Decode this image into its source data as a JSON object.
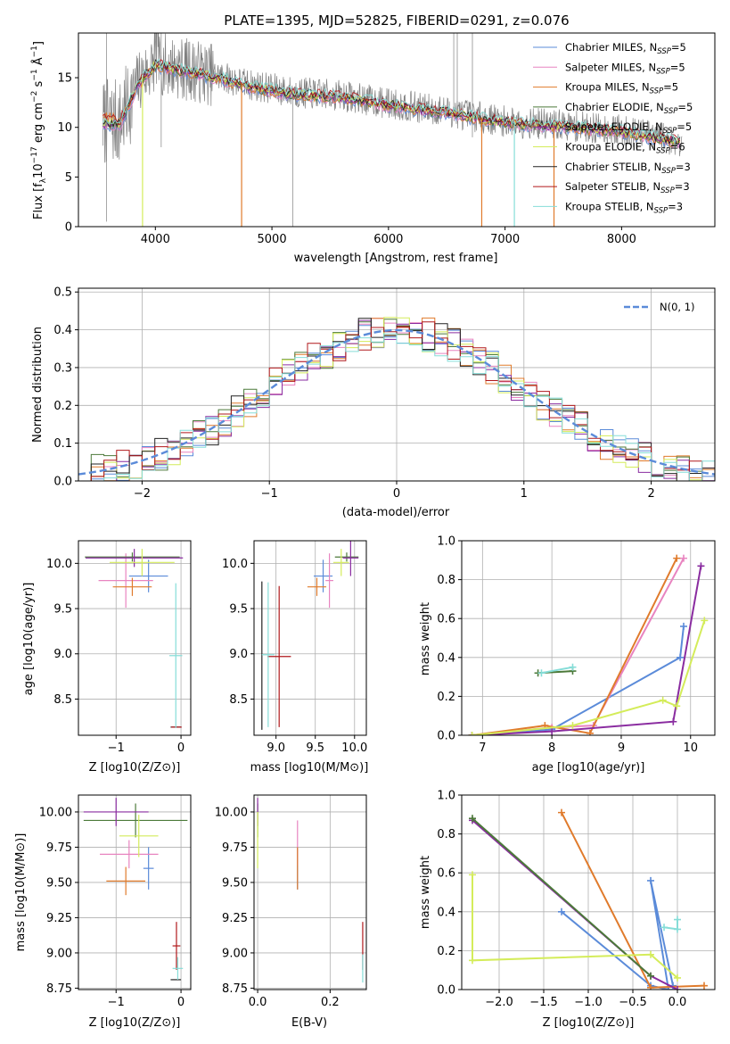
{
  "figure_title": "PLATE=1395, MJD=52825, FIBERID=0291, z=0.076",
  "model_colors": [
    "#5b8bd9",
    "#e884c0",
    "#e07b2c",
    "#4c7a3a",
    "#8a2ca0",
    "#d4ec5a",
    "#222222",
    "#b0181b",
    "#86ddd8"
  ],
  "chart_data": [
    {
      "id": "spectrum",
      "type": "line",
      "title": "PLATE=1395, MJD=52825, FIBERID=0291, z=0.076",
      "xlabel": "wavelength [Angstrom, rest frame]",
      "ylabel": "Flux [f",
      "ylabel_full": "Flux [fλ10^-17 erg cm^-2 s^-1 A^-1]",
      "xlim": [
        3340,
        8800
      ],
      "ylim": [
        0,
        19.5
      ],
      "xticks": [
        "4000",
        "5000",
        "6000",
        "7000",
        "8000"
      ],
      "yticks": [
        "0",
        "5",
        "10",
        "15"
      ],
      "grid": false,
      "legend_position": "top-right",
      "legend": [
        {
          "base": "Chabrier MILES, N",
          "sub": "SSP",
          "tail": "=5"
        },
        {
          "base": "Salpeter MILES, N",
          "sub": "SSP",
          "tail": "=5"
        },
        {
          "base": "Kroupa MILES, N",
          "sub": "SSP",
          "tail": "=5"
        },
        {
          "base": "Chabrier ELODIE, N",
          "sub": "SSP",
          "tail": "=5"
        },
        {
          "base": "Salpeter ELODIE, N",
          "sub": "SSP",
          "tail": "=5"
        },
        {
          "base": "Kroupa ELODIE, N",
          "sub": "SSP",
          "tail": "=6"
        },
        {
          "base": "Chabrier STELIB, N",
          "sub": "SSP",
          "tail": "=3"
        },
        {
          "base": "Salpeter STELIB, N",
          "sub": "SSP",
          "tail": "=3"
        },
        {
          "base": "Kroupa STELIB, N",
          "sub": "SSP",
          "tail": "=3"
        }
      ],
      "continuum": {
        "x": [
          3550,
          3700,
          3850,
          4000,
          4200,
          4500,
          4800,
          5200,
          5600,
          6000,
          6500,
          7000,
          7500,
          8000,
          8500
        ],
        "y": [
          10.5,
          10.5,
          14.5,
          16.5,
          16.0,
          15.3,
          14.3,
          13.5,
          13.2,
          12.4,
          11.6,
          10.6,
          10.2,
          9.7,
          8.6
        ]
      },
      "dropouts": [
        {
          "x": 3890,
          "color_index": 5
        },
        {
          "x": 4740,
          "color_index": 2
        },
        {
          "x": 6800,
          "color_index": 2
        },
        {
          "x": 7080,
          "color_index": 8
        },
        {
          "x": 7420,
          "color_index": 2
        }
      ]
    },
    {
      "id": "residual-histogram",
      "type": "bar",
      "xlabel": "(data-model)/error",
      "ylabel": "Normed distribution",
      "xlim": [
        -2.5,
        2.5
      ],
      "ylim": [
        0,
        0.51
      ],
      "xticks": [
        "−2",
        "−1",
        "0",
        "1",
        "2"
      ],
      "yticks": [
        "0.0",
        "0.1",
        "0.2",
        "0.3",
        "0.4",
        "0.5"
      ],
      "grid": true,
      "legend_position": "top-right",
      "legend_label": "N(0, 1)",
      "bin_width": 0.1,
      "seeds": [
        11,
        23,
        37,
        41,
        53,
        67,
        71,
        89,
        97
      ]
    },
    {
      "id": "age-vs-Z",
      "type": "scatter",
      "xlabel": "Z [log10(Z/Z⊙)]",
      "ylabel": "age  [log10(age/yr)]",
      "xlim": [
        -1.58,
        0.15
      ],
      "ylim": [
        8.1,
        10.25
      ],
      "xticks": [
        "−1",
        "0"
      ],
      "yticks": [
        "8.5",
        "9.0",
        "9.5",
        "10.0"
      ],
      "points": [
        {
          "c": 0,
          "x": -0.5,
          "xerr": 0.3,
          "y": 9.86,
          "yerr": 0.18
        },
        {
          "c": 1,
          "x": -0.85,
          "xerr": 0.42,
          "y": 9.81,
          "yerr": 0.3
        },
        {
          "c": 2,
          "x": -0.75,
          "xerr": 0.3,
          "y": 9.74,
          "yerr": 0.1
        },
        {
          "c": 3,
          "x": -0.75,
          "xerr": 0.73,
          "y": 10.07,
          "yerr": 0.05
        },
        {
          "c": 4,
          "x": -0.72,
          "xerr": 0.75,
          "y": 10.06,
          "yerr": 0.1
        },
        {
          "c": 5,
          "x": -0.6,
          "xerr": 0.5,
          "y": 10.01,
          "yerr": 0.15
        },
        {
          "c": 6,
          "x": -0.08,
          "xerr": 0.08,
          "y": 8.19,
          "yerr": 0.0
        },
        {
          "c": 7,
          "x": -0.07,
          "xerr": 0.08,
          "y": 8.19,
          "yerr": 0.0
        },
        {
          "c": 8,
          "x": -0.08,
          "xerr": 0.1,
          "y": 8.98,
          "yerr": 0.8
        }
      ]
    },
    {
      "id": "age-vs-mass",
      "type": "scatter",
      "xlabel": "mass [log10(M/M⊙)]",
      "ylabel": "",
      "xlim": [
        8.72,
        10.15
      ],
      "ylim": [
        8.1,
        10.25
      ],
      "xticks": [
        "9.0",
        "9.5",
        "10.0"
      ],
      "yticks": [
        "8.5",
        "9.0",
        "9.5",
        "10.0"
      ],
      "points": [
        {
          "c": 0,
          "x": 9.6,
          "xerr": 0.12,
          "y": 9.86,
          "yerr": 0.18
        },
        {
          "c": 1,
          "x": 9.68,
          "xerr": 0.05,
          "y": 9.81,
          "yerr": 0.3
        },
        {
          "c": 2,
          "x": 9.52,
          "xerr": 0.12,
          "y": 9.74,
          "yerr": 0.1
        },
        {
          "c": 3,
          "x": 9.9,
          "xerr": 0.15,
          "y": 10.07,
          "yerr": 0.05
        },
        {
          "c": 4,
          "x": 9.95,
          "xerr": 0.1,
          "y": 10.06,
          "yerr": 0.2
        },
        {
          "c": 5,
          "x": 9.83,
          "xerr": 0.1,
          "y": 10.01,
          "yerr": 0.15
        },
        {
          "c": 6,
          "x": 8.82,
          "xerr": 0.0,
          "y": 8.98,
          "yerr": 0.82
        },
        {
          "c": 7,
          "x": 9.04,
          "xerr": 0.15,
          "y": 8.97,
          "yerr": 0.78
        },
        {
          "c": 8,
          "x": 8.9,
          "xerr": 0.08,
          "y": 8.99,
          "yerr": 0.8
        }
      ]
    },
    {
      "id": "mass-weight-vs-age",
      "type": "line",
      "xlabel": "age  [log10(age/yr)]",
      "ylabel": "mass weight",
      "xlim": [
        6.7,
        10.35
      ],
      "ylim": [
        0,
        1.0
      ],
      "xticks": [
        "7",
        "8",
        "9",
        "10"
      ],
      "yticks": [
        "0.0",
        "0.2",
        "0.4",
        "0.6",
        "0.8",
        "1.0"
      ],
      "grid": true,
      "series": [
        {
          "c": 0,
          "x": [
            6.85,
            8.0,
            9.85,
            9.9
          ],
          "y": [
            0.0,
            0.03,
            0.4,
            0.56
          ]
        },
        {
          "c": 1,
          "x": [
            6.85,
            8.0,
            8.6,
            9.9
          ],
          "y": [
            0.0,
            0.04,
            0.05,
            0.91
          ]
        },
        {
          "c": 2,
          "x": [
            6.85,
            7.9,
            8.55,
            9.8
          ],
          "y": [
            0.0,
            0.05,
            0.01,
            0.91
          ]
        },
        {
          "c": 3,
          "x": [
            7.8,
            8.3
          ],
          "y": [
            0.32,
            0.33
          ]
        },
        {
          "c": 4,
          "x": [
            6.85,
            8.0,
            9.75,
            10.15
          ],
          "y": [
            0.0,
            0.02,
            0.07,
            0.87
          ]
        },
        {
          "c": 5,
          "x": [
            6.85,
            8.3,
            9.6,
            9.8,
            10.2
          ],
          "y": [
            0.0,
            0.05,
            0.18,
            0.15,
            0.59
          ]
        },
        {
          "c": 8,
          "x": [
            7.85,
            8.3
          ],
          "y": [
            0.32,
            0.35
          ]
        }
      ]
    },
    {
      "id": "mass-vs-Z",
      "type": "scatter",
      "xlabel": "Z [log10(Z/Z⊙)]",
      "ylabel": "mass [log10(M/M⊙)]",
      "xlim": [
        -1.58,
        0.15
      ],
      "ylim": [
        8.74,
        10.12
      ],
      "xticks": [
        "−1",
        "0"
      ],
      "yticks": [
        "8.75",
        "9.00",
        "9.25",
        "9.50",
        "9.75",
        "10.00"
      ],
      "points": [
        {
          "c": 0,
          "x": -0.5,
          "xerr": 0.08,
          "y": 9.6,
          "yerr": 0.15
        },
        {
          "c": 1,
          "x": -0.8,
          "xerr": 0.45,
          "y": 9.7,
          "yerr": 0.1
        },
        {
          "c": 2,
          "x": -0.85,
          "xerr": 0.3,
          "y": 9.51,
          "yerr": 0.1
        },
        {
          "c": 3,
          "x": -0.7,
          "xerr": 0.8,
          "y": 9.94,
          "yerr": 0.12
        },
        {
          "c": 4,
          "x": -1.0,
          "xerr": 0.5,
          "y": 10.0,
          "yerr": 0.1
        },
        {
          "c": 5,
          "x": -0.65,
          "xerr": 0.3,
          "y": 9.83,
          "yerr": 0.15
        },
        {
          "c": 6,
          "x": -0.08,
          "xerr": 0.08,
          "y": 8.81,
          "yerr": 0.0
        },
        {
          "c": 7,
          "x": -0.07,
          "xerr": 0.06,
          "y": 9.05,
          "yerr": 0.17
        },
        {
          "c": 8,
          "x": -0.05,
          "xerr": 0.08,
          "y": 8.89,
          "yerr": 0.08
        }
      ]
    },
    {
      "id": "mass-vs-EBV",
      "type": "scatter",
      "xlabel": "E(B-V)",
      "ylabel": "",
      "xlim": [
        -0.01,
        0.3
      ],
      "ylim": [
        8.74,
        10.12
      ],
      "xticks": [
        "0.0",
        "0.2"
      ],
      "yticks": [
        "8.75",
        "9.00",
        "9.25",
        "9.50",
        "9.75",
        "10.00"
      ],
      "points": [
        {
          "c": 0,
          "x": 0.11,
          "y": 9.6,
          "yerr": 0.15
        },
        {
          "c": 1,
          "x": 0.11,
          "y": 9.78,
          "yerr": 0.16
        },
        {
          "c": 2,
          "x": 0.11,
          "y": 9.6,
          "yerr": 0.15
        },
        {
          "c": 3,
          "x": 0.0,
          "y": 9.94,
          "yerr": 0.12
        },
        {
          "c": 4,
          "x": 0.0,
          "y": 10.0,
          "yerr": 0.1
        },
        {
          "c": 5,
          "x": 0.0,
          "y": 9.8,
          "yerr": 0.2
        },
        {
          "c": 6,
          "x": 0.29,
          "y": 8.81,
          "yerr": 0.0
        },
        {
          "c": 7,
          "x": 0.29,
          "y": 9.05,
          "yerr": 0.17
        },
        {
          "c": 8,
          "x": 0.29,
          "y": 8.89,
          "yerr": 0.1
        }
      ]
    },
    {
      "id": "mass-weight-vs-Z",
      "type": "line",
      "xlabel": "Z [log10(Z/Z⊙)]",
      "ylabel": "mass weight",
      "xlim": [
        -2.42,
        0.42
      ],
      "ylim": [
        0,
        1.0
      ],
      "xticks": [
        "−2.0",
        "−1.5",
        "−1.0",
        "−0.5",
        "0.0"
      ],
      "yticks": [
        "0.0",
        "0.2",
        "0.4",
        "0.6",
        "0.8",
        "1.0"
      ],
      "grid": true,
      "series": [
        {
          "c": 0,
          "x": [
            -1.3,
            -0.3,
            -0.1,
            -0.3,
            -0.05
          ],
          "y": [
            0.4,
            0.02,
            0.0,
            0.56,
            0.02
          ]
        },
        {
          "c": 2,
          "x": [
            -1.3,
            -0.3,
            0.3
          ],
          "y": [
            0.91,
            0.01,
            0.02
          ]
        },
        {
          "c": 4,
          "x": [
            -2.3,
            -0.3,
            0.0
          ],
          "y": [
            0.87,
            0.07,
            0.0
          ]
        },
        {
          "c": 3,
          "x": [
            -2.3,
            -0.3
          ],
          "y": [
            0.88,
            0.07
          ]
        },
        {
          "c": 5,
          "x": [
            -2.3,
            -2.3,
            -0.3,
            0.0
          ],
          "y": [
            0.59,
            0.15,
            0.18,
            0.06
          ]
        },
        {
          "c": 8,
          "x": [
            -0.15,
            0.0,
            0.0
          ],
          "y": [
            0.32,
            0.31,
            0.36
          ]
        }
      ]
    }
  ]
}
